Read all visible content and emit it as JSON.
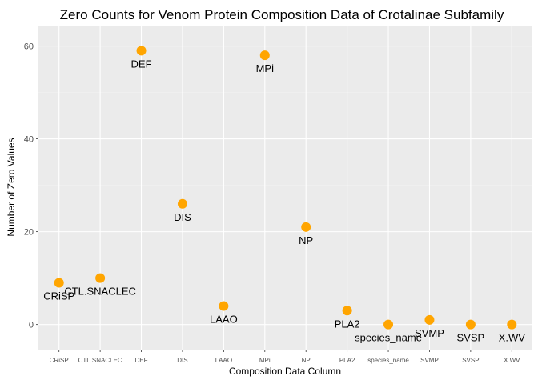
{
  "chart_data": {
    "type": "scatter",
    "title": "Zero Counts for Venom Protein Composition Data of Crotalinae Subfamily",
    "xlabel": "Composition Data Column",
    "ylabel": "Number of Zero Values",
    "categories": [
      "CRiSP",
      "CTL.SNACLEC",
      "DEF",
      "DIS",
      "LAAO",
      "MPi",
      "NP",
      "PLA2",
      "species_name",
      "SVMP",
      "SVSP",
      "X.WV"
    ],
    "values": [
      9,
      10,
      59,
      26,
      4,
      58,
      21,
      3,
      0,
      1,
      0,
      0
    ],
    "point_labels": [
      "CRiSP",
      "CTL.SNACLEC",
      "DEF",
      "DIS",
      "LAAO",
      "MPi",
      "NP",
      "PLA2",
      "species_name",
      "SVMP",
      "SVSP",
      "X.WV"
    ],
    "yticks": [
      0,
      20,
      40,
      60
    ],
    "ylim": [
      -5.4,
      64.4
    ],
    "grid": true,
    "legend": "none",
    "colors": {
      "point": "#FFA500",
      "panel_background": "#EBEBEB",
      "grid_major": "#FFFFFF",
      "grid_minor": "#F2F2F2",
      "tick_text": "#4D4D4D"
    }
  }
}
